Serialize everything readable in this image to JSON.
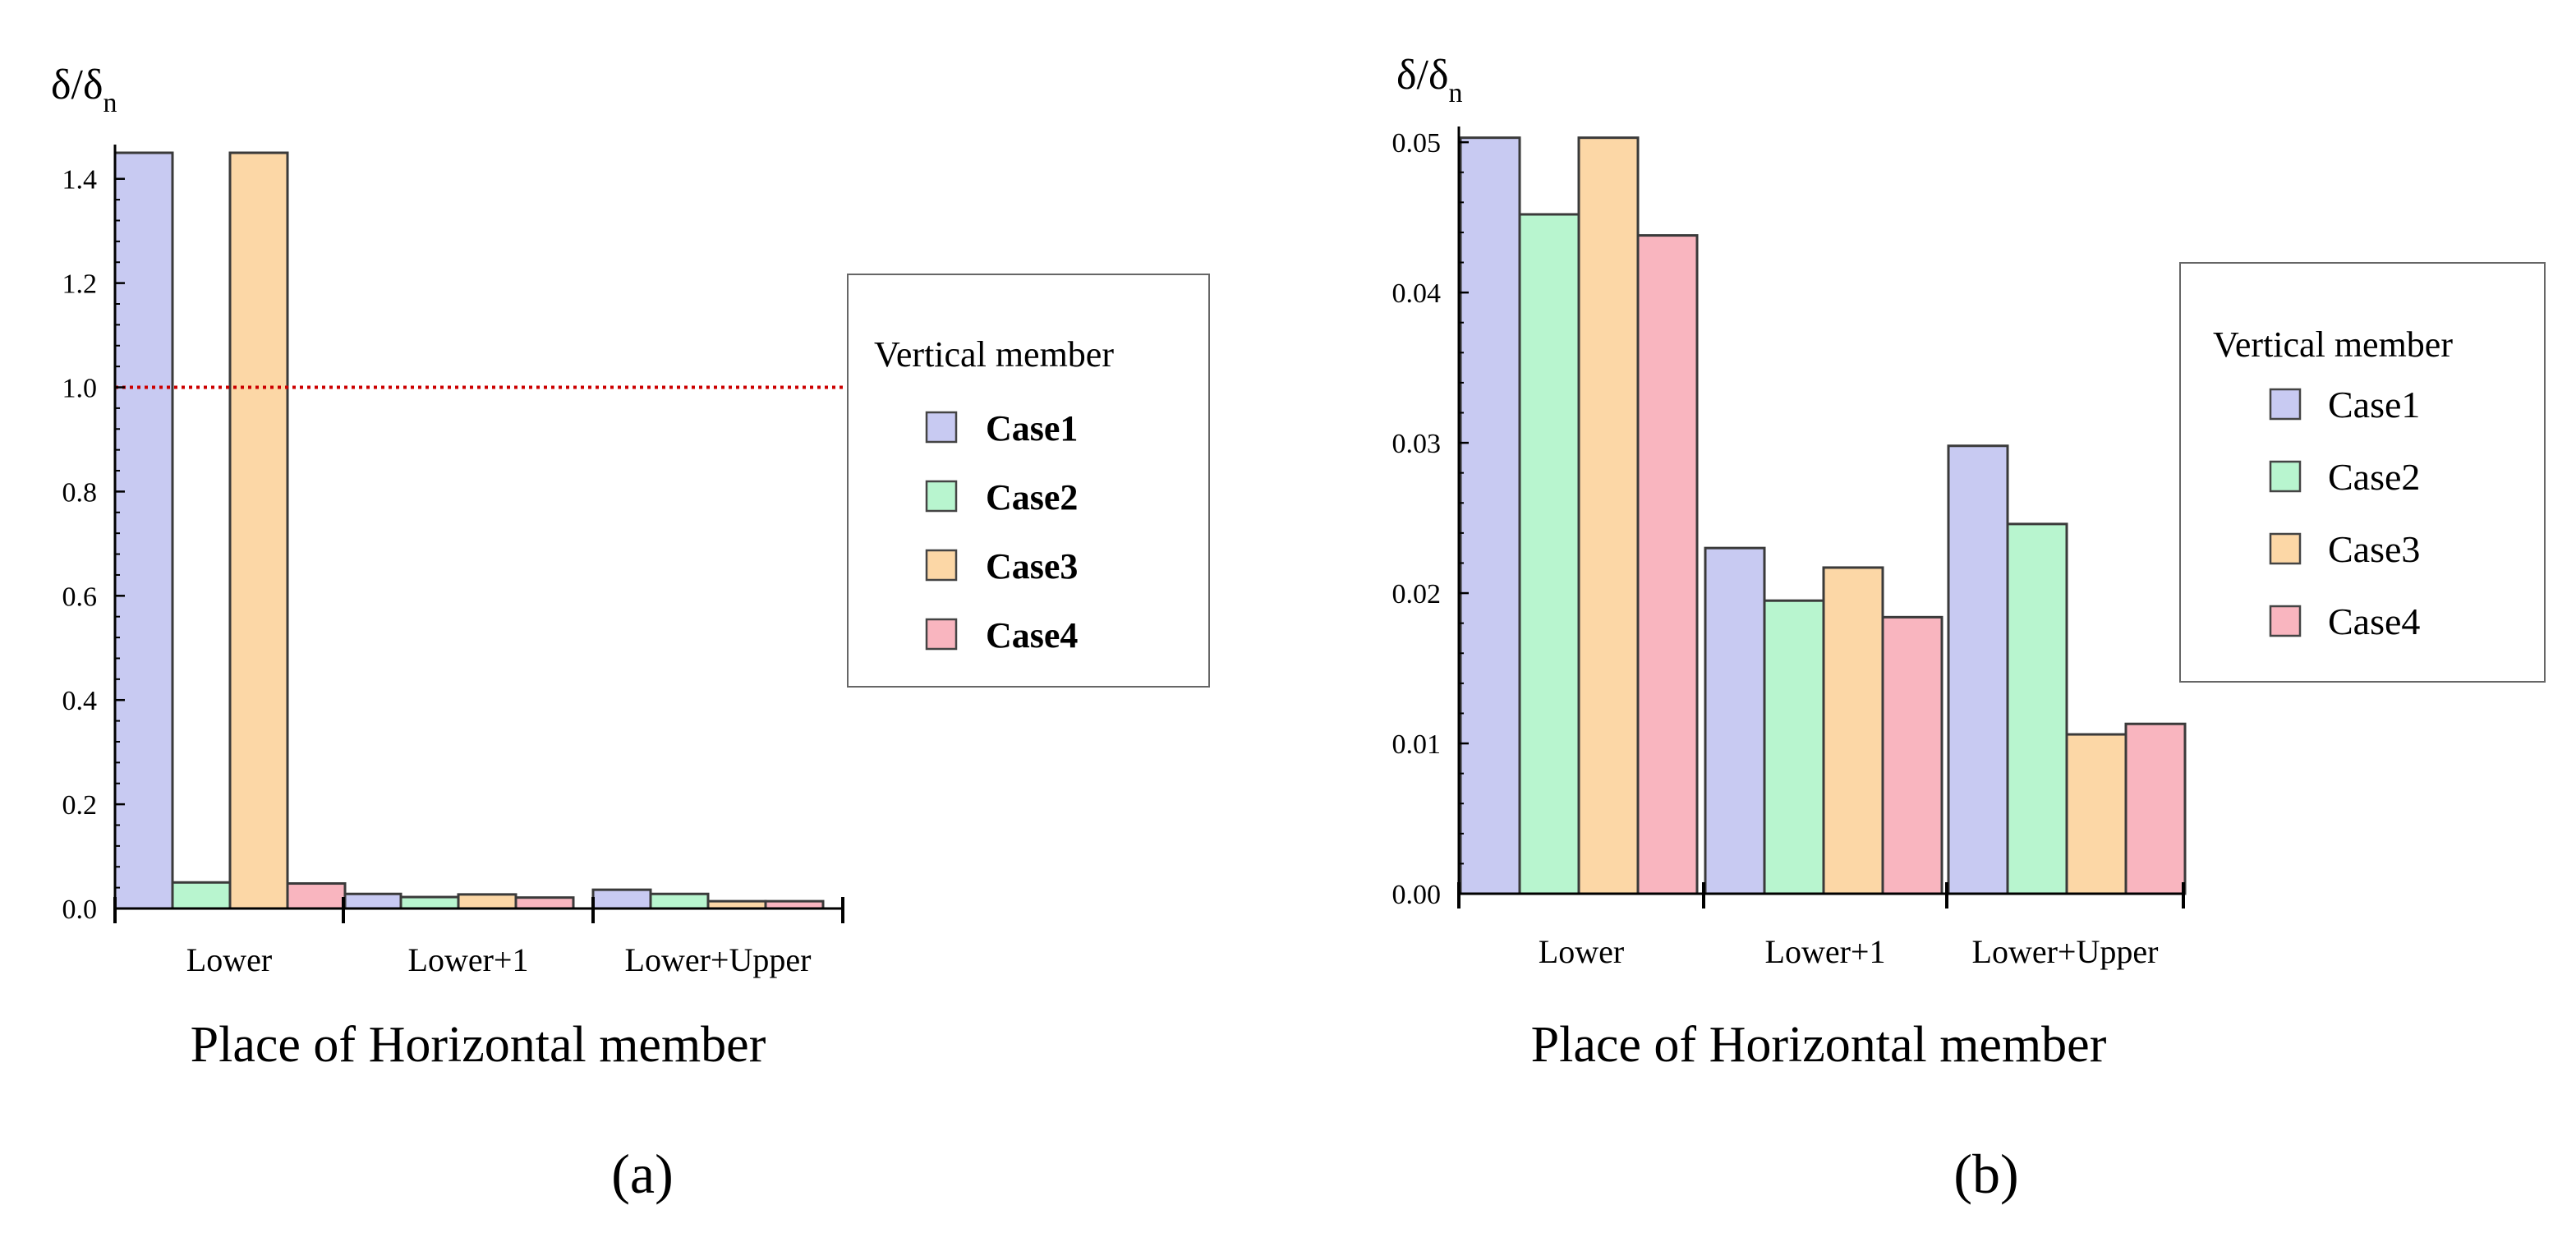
{
  "chart_data": [
    {
      "type": "bar",
      "panel": "a",
      "panel_label": "(a)",
      "ylabel": "δ/δn",
      "ylabel_main": "δ/δ",
      "ylabel_sub": "n",
      "xlabel": "Place of Horizontal member",
      "categories": [
        "Lower",
        "Lower+1",
        "Lower+Upper"
      ],
      "ylim": [
        0,
        1.45
      ],
      "yticks": [
        0.0,
        0.2,
        0.4,
        0.6,
        0.8,
        1.0,
        1.2,
        1.4
      ],
      "ytick_labels": [
        "0.0",
        "0.2",
        "0.4",
        "0.6",
        "0.8",
        "1.0",
        "1.2",
        "1.4"
      ],
      "reference_line": {
        "y": 1.0,
        "color": "#cc0000",
        "style": "dotted"
      },
      "legend_title": "Vertical member",
      "series": [
        {
          "name": "Case1",
          "color": "#c8caf2",
          "values": [
            1.45,
            0.028,
            0.036
          ]
        },
        {
          "name": "Case2",
          "color": "#b8f5cf",
          "values": [
            0.05,
            0.022,
            0.028
          ]
        },
        {
          "name": "Case3",
          "color": "#fcd7a6",
          "values": [
            1.45,
            0.027,
            0.014
          ]
        },
        {
          "name": "Case4",
          "color": "#f9b5bf",
          "values": [
            0.048,
            0.021,
            0.014
          ]
        }
      ]
    },
    {
      "type": "bar",
      "panel": "b",
      "panel_label": "(b)",
      "ylabel": "δ/δn",
      "ylabel_main": "δ/δ",
      "ylabel_sub": "n",
      "xlabel": "Place of Horizontal member",
      "categories": [
        "Lower",
        "Lower+1",
        "Lower+Upper"
      ],
      "ylim": [
        0,
        0.0505
      ],
      "yticks": [
        0.0,
        0.01,
        0.02,
        0.03,
        0.04,
        0.05
      ],
      "ytick_labels": [
        "0.00",
        "0.01",
        "0.02",
        "0.03",
        "0.04",
        "0.05"
      ],
      "legend_title": "Vertical member",
      "series": [
        {
          "name": "Case1",
          "color": "#c8caf2",
          "values": [
            0.0503,
            0.023,
            0.0298
          ]
        },
        {
          "name": "Case2",
          "color": "#b8f5cf",
          "values": [
            0.0452,
            0.0195,
            0.0246
          ]
        },
        {
          "name": "Case3",
          "color": "#fcd7a6",
          "values": [
            0.0503,
            0.0217,
            0.0106
          ]
        },
        {
          "name": "Case4",
          "color": "#f9b5bf",
          "values": [
            0.0438,
            0.0184,
            0.0113
          ]
        }
      ]
    }
  ]
}
